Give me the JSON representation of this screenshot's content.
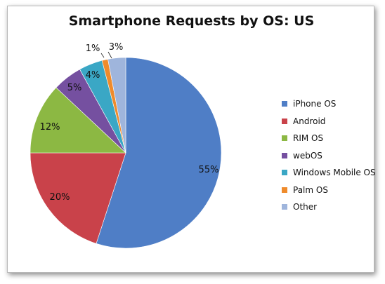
{
  "chart_data": {
    "type": "pie",
    "title": "Smartphone Requests by OS: US",
    "slices": [
      {
        "label": "iPhone OS",
        "value": 55,
        "value_label": "55%",
        "color": "#4f7ec6"
      },
      {
        "label": "Android",
        "value": 20,
        "value_label": "20%",
        "color": "#c9424a"
      },
      {
        "label": "RIM OS",
        "value": 12,
        "value_label": "12%",
        "color": "#8cb843"
      },
      {
        "label": "webOS",
        "value": 5,
        "value_label": "5%",
        "color": "#7550a0"
      },
      {
        "label": "Windows Mobile OS",
        "value": 4,
        "value_label": "4%",
        "color": "#3aa7c5"
      },
      {
        "label": "Palm OS",
        "value": 1,
        "value_label": "1%",
        "color": "#ef8b2c"
      },
      {
        "label": "Other",
        "value": 3,
        "value_label": "3%",
        "color": "#9fb5dc"
      }
    ],
    "legend_position": "right"
  }
}
